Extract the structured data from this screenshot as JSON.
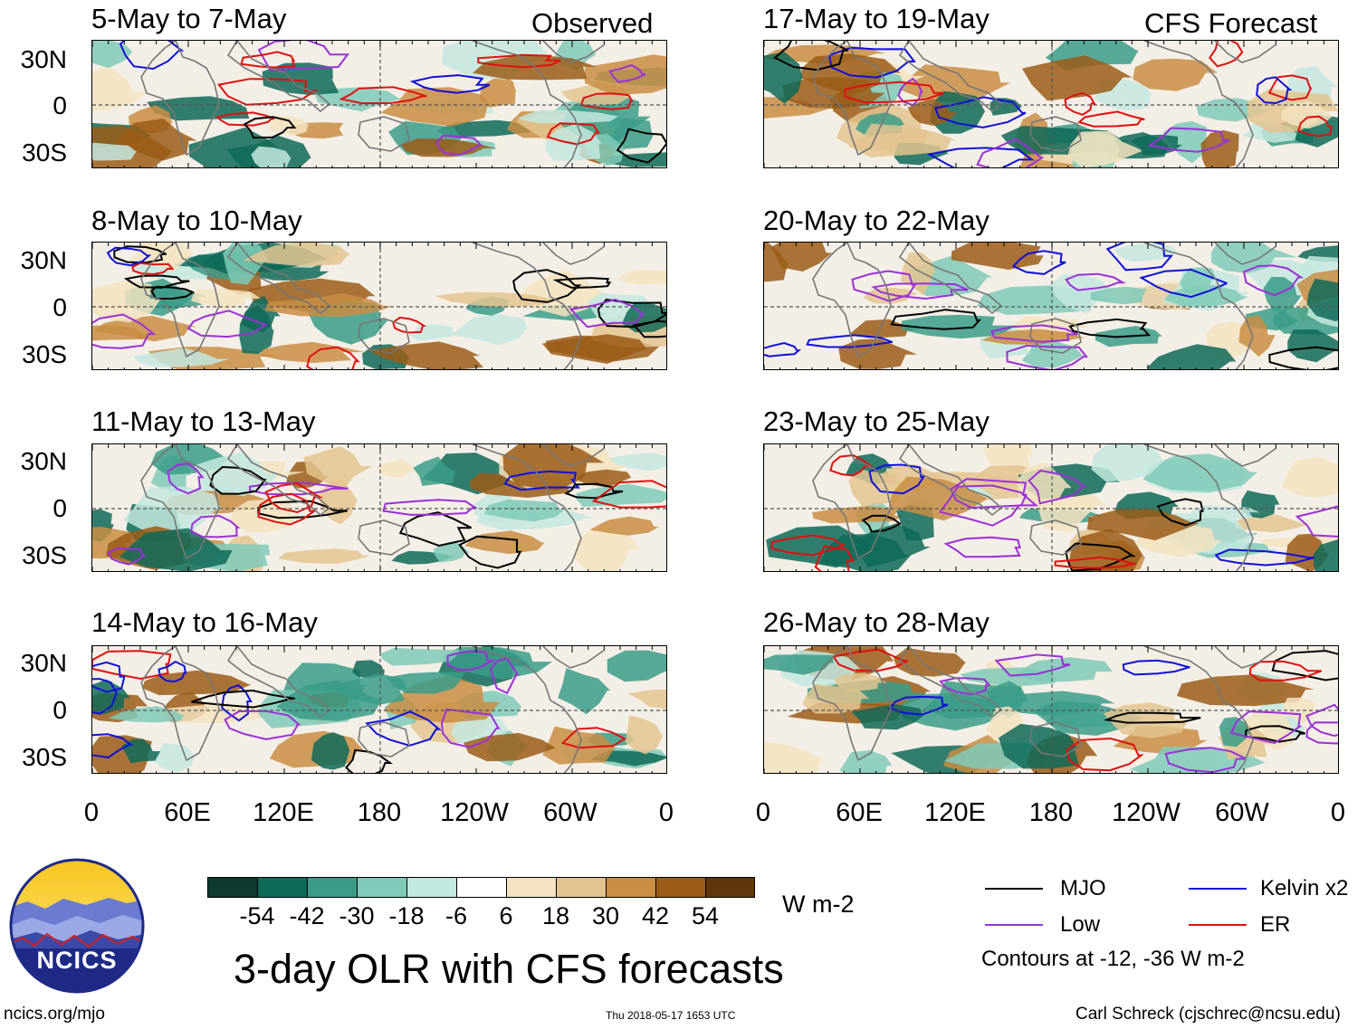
{
  "header": {
    "left_label": "Observed",
    "right_label": "CFS Forecast"
  },
  "panels": [
    {
      "title": "5-May to 7-May",
      "group": "observed"
    },
    {
      "title": "8-May to 10-May",
      "group": "observed"
    },
    {
      "title": "11-May to 13-May",
      "group": "observed"
    },
    {
      "title": "14-May to 16-May",
      "group": "observed"
    },
    {
      "title": "17-May to 19-May",
      "group": "forecast"
    },
    {
      "title": "20-May to 22-May",
      "group": "forecast"
    },
    {
      "title": "23-May to 25-May",
      "group": "forecast"
    },
    {
      "title": "26-May to 28-May",
      "group": "forecast"
    }
  ],
  "axes": {
    "y_labels": [
      "30N",
      "0",
      "30S"
    ],
    "x_labels": [
      "0",
      "60E",
      "120E",
      "180",
      "120W",
      "60W",
      "0"
    ]
  },
  "colorbar": {
    "colors": [
      "#0b3b2e",
      "#0f6a58",
      "#3a9c88",
      "#7fcab9",
      "#c3e8df",
      "#ffffff",
      "#f3e3c0",
      "#e3c48f",
      "#c98d43",
      "#9b5c17",
      "#5e3609"
    ],
    "labels": [
      "-54",
      "-42",
      "-30",
      "-18",
      "-6",
      "6",
      "18",
      "30",
      "42",
      "54"
    ],
    "units": "W m-2"
  },
  "legend": {
    "items": [
      {
        "label": "MJO",
        "color": "#000000"
      },
      {
        "label": "Kelvin x2",
        "color": "#1010d8"
      },
      {
        "label": "Low",
        "color": "#9b30d8"
      },
      {
        "label": "ER",
        "color": "#e01010"
      }
    ],
    "note": "Contours at -12, -36 W m-2"
  },
  "logo": {
    "text": "NCICS"
  },
  "main_title": "3-day OLR with CFS forecasts",
  "footer": {
    "url": "ncics.org/mjo",
    "timestamp": "Thu 2018-05-17 1653 UTC",
    "credit": "Carl Schreck (cjschrec@ncsu.edu)"
  }
}
